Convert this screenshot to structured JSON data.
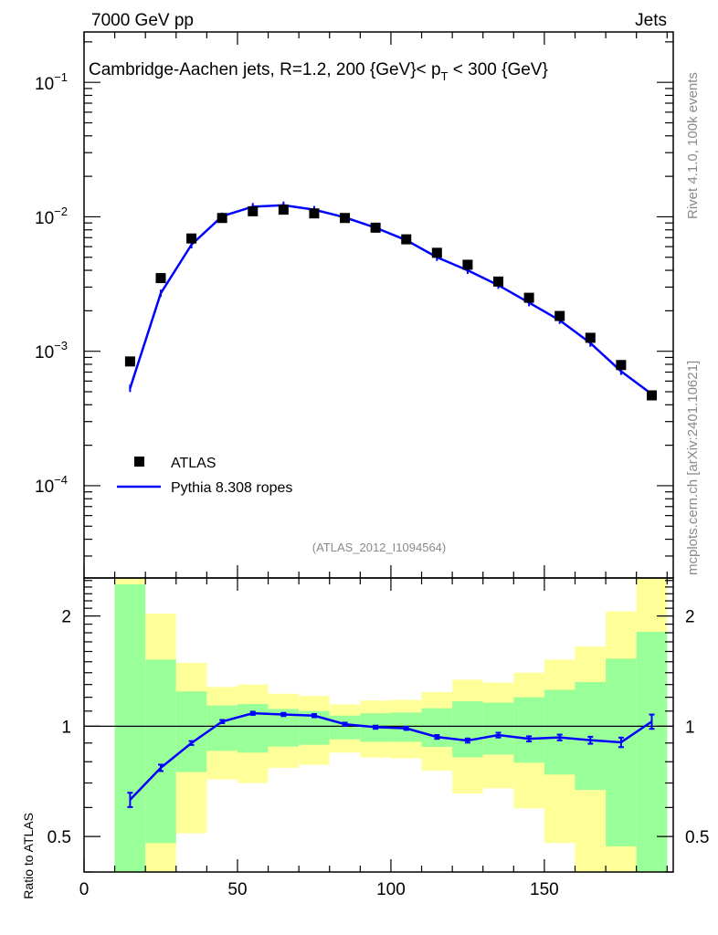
{
  "header": {
    "energy_label": "7000 GeV pp",
    "category_label": "Jets",
    "title_pre": "Cambridge-Aachen jets, R=1.2,  200 {GeV}< p",
    "title_sub": "T",
    "title_post": " < 300 {GeV}",
    "analysis_id": "(ATLAS_2012_I1094564)",
    "rivet_label": "Rivet 4.1.0,  100k events",
    "source_label": "mcplots.cern.ch [arXiv:2401.10621]"
  },
  "colors": {
    "data": "#000000",
    "mc": "#0000ff",
    "stat_band": "#99ff99",
    "total_band": "#ffff99"
  },
  "chart_data": [
    {
      "type": "scatter",
      "panel": "main",
      "yscale": "log",
      "xlim": [
        0,
        192
      ],
      "ylim": [
        2.06e-05,
        0.237
      ],
      "ytick_labels": [
        {
          "value": 0.1,
          "base": "10",
          "exp": "−1"
        },
        {
          "value": 0.01,
          "base": "10",
          "exp": "−2"
        },
        {
          "value": 0.001,
          "base": "10",
          "exp": "−3"
        },
        {
          "value": 0.0001,
          "base": "10",
          "exp": "−4"
        }
      ],
      "legend": {
        "placement": "bottom-left",
        "entries": [
          "ATLAS",
          "Pythia 8.308 ropes"
        ]
      },
      "x": [
        15,
        25,
        35,
        45,
        55,
        65,
        75,
        85,
        95,
        105,
        115,
        125,
        135,
        145,
        155,
        165,
        175,
        185
      ],
      "series": [
        {
          "name": "ATLAS",
          "marker": "square",
          "values": [
            0.00084,
            0.0035,
            0.0069,
            0.0098,
            0.011,
            0.0113,
            0.0106,
            0.0098,
            0.0083,
            0.0068,
            0.0054,
            0.0044,
            0.0033,
            0.0025,
            0.00183,
            0.00126,
            0.00079,
            0.00047
          ]
        },
        {
          "name": "Pythia 8.308 ropes",
          "marker": "line",
          "values": [
            0.00053,
            0.0027,
            0.0062,
            0.0101,
            0.0119,
            0.0122,
            0.0113,
            0.0099,
            0.0083,
            0.0067,
            0.005,
            0.004,
            0.0031,
            0.0023,
            0.0017,
            0.00115,
            0.00071,
            0.00048
          ]
        }
      ]
    },
    {
      "type": "line",
      "panel": "ratio",
      "yscale": "log",
      "ylabel": "Ratio to ATLAS",
      "xlim": [
        0,
        192
      ],
      "ylim": [
        0.4,
        2.54
      ],
      "xtick_labels": [
        "0",
        "50",
        "100",
        "150"
      ],
      "xticks": [
        0,
        50,
        100,
        150
      ],
      "ytick_labels": [
        "0.5",
        "1",
        "2"
      ],
      "yticks": [
        0.5,
        1,
        2
      ],
      "x": [
        15,
        25,
        35,
        45,
        55,
        65,
        75,
        85,
        95,
        105,
        115,
        125,
        135,
        145,
        155,
        165,
        175,
        185
      ],
      "ratio": [
        0.63,
        0.77,
        0.9,
        1.03,
        1.085,
        1.077,
        1.069,
        1.013,
        0.994,
        0.987,
        0.935,
        0.914,
        0.946,
        0.924,
        0.932,
        0.916,
        0.904,
        1.03
      ],
      "ratio_err": [
        0.045,
        0.02,
        0.012,
        0.01,
        0.01,
        0.01,
        0.01,
        0.01,
        0.01,
        0.01,
        0.012,
        0.013,
        0.015,
        0.016,
        0.018,
        0.022,
        0.03,
        0.045
      ],
      "bin_edges": [
        10,
        20,
        30,
        40,
        50,
        60,
        70,
        80,
        90,
        100,
        110,
        120,
        130,
        140,
        150,
        160,
        170,
        180,
        190
      ],
      "stat_band": {
        "low": [
          0.3,
          0.48,
          0.75,
          0.857,
          0.847,
          0.88,
          0.89,
          0.921,
          0.907,
          0.907,
          0.878,
          0.823,
          0.837,
          0.795,
          0.738,
          0.67,
          0.47,
          0.3
        ],
        "high": [
          2.44,
          1.52,
          1.245,
          1.14,
          1.15,
          1.115,
          1.1,
          1.069,
          1.085,
          1.09,
          1.12,
          1.17,
          1.16,
          1.2,
          1.257,
          1.32,
          1.53,
          1.81
        ]
      },
      "total_band": {
        "low": [
          0.3,
          0.3,
          0.51,
          0.716,
          0.7,
          0.77,
          0.785,
          0.847,
          0.822,
          0.817,
          0.757,
          0.655,
          0.677,
          0.597,
          0.48,
          0.3,
          0.3,
          0.3
        ],
        "high": [
          2.8,
          2.03,
          1.49,
          1.28,
          1.3,
          1.227,
          1.21,
          1.147,
          1.176,
          1.18,
          1.24,
          1.34,
          1.316,
          1.4,
          1.52,
          1.65,
          2.06,
          2.8
        ]
      }
    }
  ]
}
